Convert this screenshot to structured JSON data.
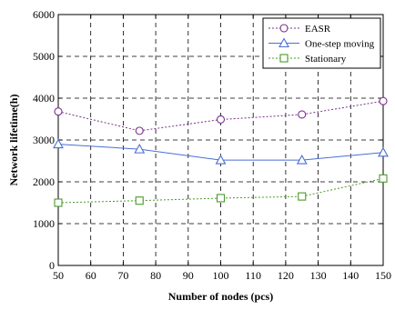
{
  "chart_data": {
    "type": "line",
    "xlabel": "Number of nodes (pcs)",
    "ylabel": "Network lifetime(h)",
    "xlim": [
      50,
      150
    ],
    "ylim": [
      0,
      6000
    ],
    "xticks": [
      50,
      60,
      70,
      80,
      90,
      100,
      110,
      120,
      130,
      140,
      150
    ],
    "yticks": [
      0,
      1000,
      2000,
      3000,
      4000,
      5000,
      6000
    ],
    "grid": true,
    "legend_position": "top-right",
    "x": [
      50,
      75,
      100,
      125,
      150
    ],
    "series": [
      {
        "name": "EASR",
        "values": [
          3680,
          3220,
          3490,
          3610,
          3930
        ],
        "color": "#7b2f8e",
        "marker": "circle",
        "dash": "dotted"
      },
      {
        "name": "One-step moving",
        "values": [
          2900,
          2780,
          2520,
          2520,
          2700
        ],
        "color": "#4a6fd4",
        "marker": "triangle",
        "dash": "solid"
      },
      {
        "name": "Stationary",
        "values": [
          1500,
          1550,
          1610,
          1650,
          2080
        ],
        "color": "#4c9a2a",
        "marker": "square",
        "dash": "dotted"
      }
    ]
  }
}
